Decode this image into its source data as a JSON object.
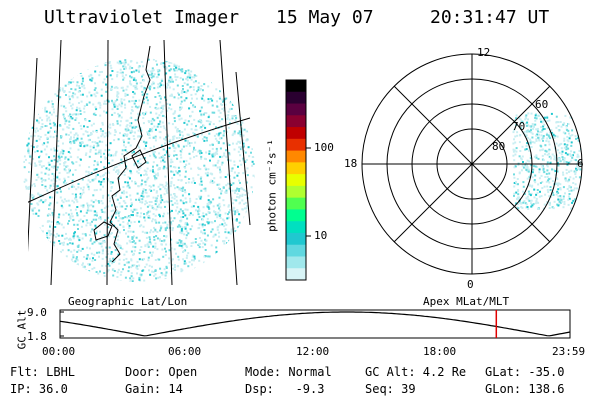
{
  "header": {
    "instrument": "Ultraviolet Imager",
    "date": "15 May 07",
    "time": "20:31:47 UT"
  },
  "colorbar": {
    "unit_label": "photon cm⁻²s⁻¹",
    "ticks": [
      "100",
      "10"
    ],
    "colors": [
      "#000000",
      "#2a0030",
      "#5a0040",
      "#8a0030",
      "#c00000",
      "#e83000",
      "#ff8800",
      "#ffd000",
      "#e8ff00",
      "#b0ff30",
      "#50ff50",
      "#00ff90",
      "#00e0c0",
      "#20c8d0",
      "#60d8e0",
      "#a0e8ec",
      "#d8f4f6"
    ]
  },
  "polar_plot": {
    "clock_labels": {
      "top": "12",
      "left": "18",
      "right": "6",
      "bottom": "0"
    },
    "lat_labels": [
      "60",
      "70",
      "80"
    ]
  },
  "map_labels": {
    "left": "Geographic Lat/Lon",
    "right": "Apex MLat/MLT"
  },
  "timeline": {
    "y_axis_label": "GC Alt",
    "y_ticks": [
      "9.0",
      "1.8"
    ],
    "x_ticks": [
      "00:00",
      "06:00",
      "12:00",
      "18:00",
      "23:59"
    ],
    "marker_time": "20:31"
  },
  "info": {
    "flt": "Flt: LBHL",
    "door": "Door: Open",
    "mode": "Mode: Normal",
    "gc_alt": "GC Alt: 4.2 Re",
    "glat": "GLat: -35.0",
    "ip": "IP: 36.0",
    "gain": "Gain: 14",
    "dsp": "Dsp:   -9.3",
    "seq": "Seq: 39",
    "glon": "GLon: 138.6"
  },
  "colors": {
    "speckle_light": "#c8eef2",
    "speckle_mid": "#70dce0",
    "speckle_strong": "#20c8d0",
    "marker": "#e00000"
  }
}
